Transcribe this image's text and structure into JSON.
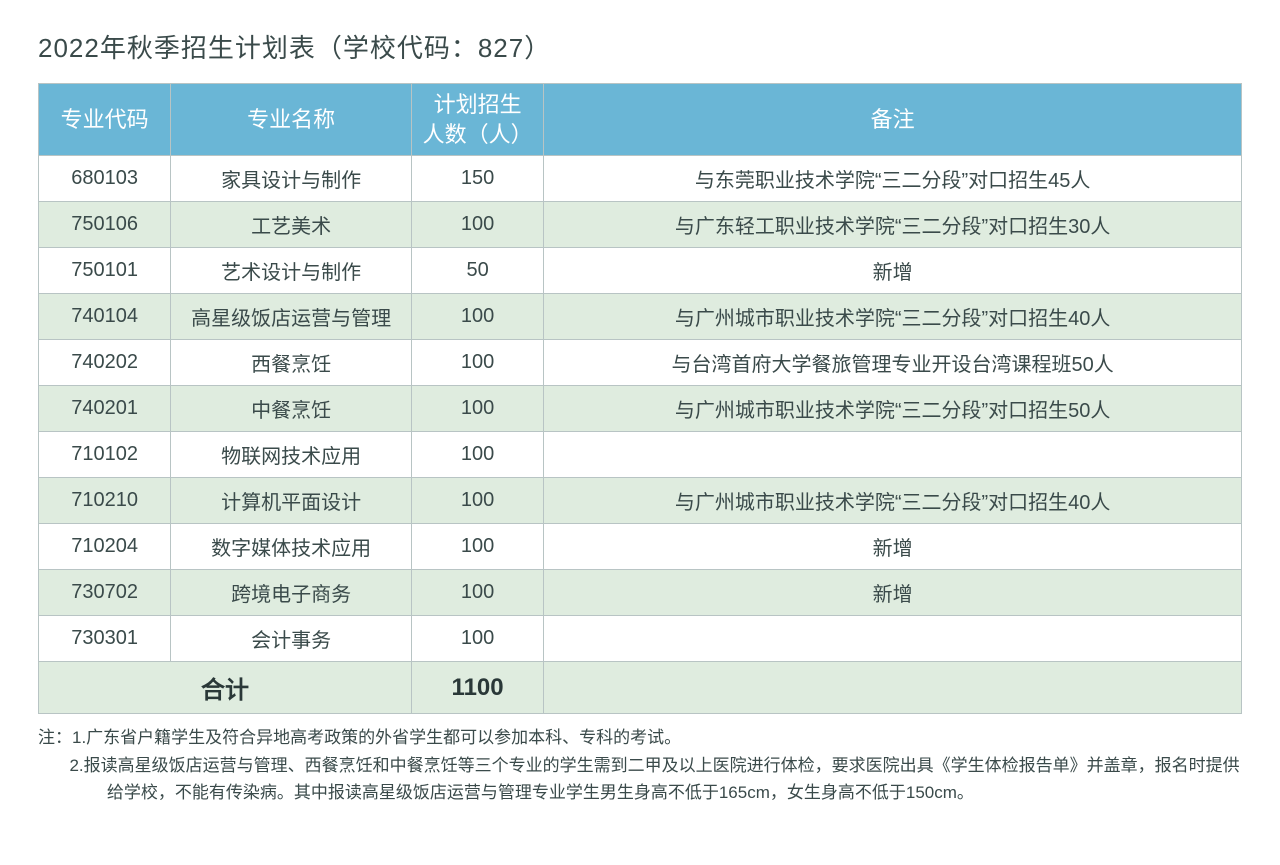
{
  "title": "2022年秋季招生计划表（学校代码：827）",
  "colors": {
    "header_bg": "#6ab6d6",
    "header_text": "#ffffff",
    "row_even_bg": "#dfecdf",
    "row_odd_bg": "#ffffff",
    "border": "#b8c4c4",
    "text": "#3a4a4a"
  },
  "columns": [
    {
      "key": "code",
      "label": "专业代码",
      "width": "11%"
    },
    {
      "key": "name",
      "label": "专业名称",
      "width": "20%"
    },
    {
      "key": "count",
      "label": "计划招生\n人数（人）",
      "width": "11%"
    },
    {
      "key": "note",
      "label": "备注",
      "width": "58%"
    }
  ],
  "rows": [
    {
      "code": "680103",
      "name": "家具设计与制作",
      "count": "150",
      "note": "与东莞职业技术学院“三二分段”对口招生45人"
    },
    {
      "code": "750106",
      "name": "工艺美术",
      "count": "100",
      "note": "与广东轻工职业技术学院“三二分段”对口招生30人"
    },
    {
      "code": "750101",
      "name": "艺术设计与制作",
      "count": "50",
      "note": "新增"
    },
    {
      "code": "740104",
      "name": "高星级饭店运营与管理",
      "count": "100",
      "note": "与广州城市职业技术学院“三二分段”对口招生40人"
    },
    {
      "code": "740202",
      "name": "西餐烹饪",
      "count": "100",
      "note": "与台湾首府大学餐旅管理专业开设台湾课程班50人"
    },
    {
      "code": "740201",
      "name": "中餐烹饪",
      "count": "100",
      "note": "与广州城市职业技术学院“三二分段”对口招生50人"
    },
    {
      "code": "710102",
      "name": "物联网技术应用",
      "count": "100",
      "note": ""
    },
    {
      "code": "710210",
      "name": "计算机平面设计",
      "count": "100",
      "note": "与广州城市职业技术学院“三二分段”对口招生40人"
    },
    {
      "code": "710204",
      "name": "数字媒体技术应用",
      "count": "100",
      "note": "新增"
    },
    {
      "code": "730702",
      "name": "跨境电子商务",
      "count": "100",
      "note": "新增"
    },
    {
      "code": "730301",
      "name": "会计事务",
      "count": "100",
      "note": ""
    }
  ],
  "total": {
    "label": "合计",
    "count": "1100"
  },
  "footnotes": {
    "prefix": "注：",
    "items": [
      "1.广东省户籍学生及符合异地高考政策的外省学生都可以参加本科、专科的考试。",
      "2.报读高星级饭店运营与管理、西餐烹饪和中餐烹饪等三个专业的学生需到二甲及以上医院进行体检，要求医院出具《学生体检报告单》并盖章，报名时提供给学校，不能有传染病。其中报读高星级饭店运营与管理专业学生男生身高不低于165cm，女生身高不低于150cm。"
    ]
  }
}
